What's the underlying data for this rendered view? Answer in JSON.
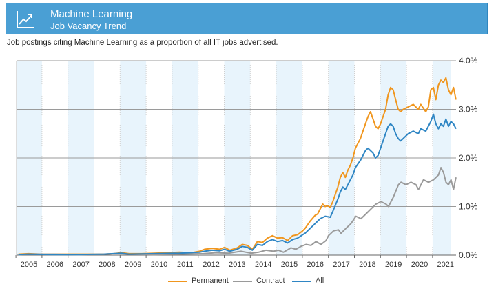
{
  "header": {
    "title": "Machine Learning",
    "subtitle": "Job Vacancy Trend",
    "icon": "trend-chart-icon",
    "color": "#4a9fd4"
  },
  "caption": "Job postings citing Machine Learning as a proportion of all IT jobs advertised.",
  "chart_data": {
    "type": "line",
    "x_axis": {
      "min": 2004.55,
      "max": 2021.4,
      "tick_labels": [
        "2005",
        "2006",
        "2007",
        "2008",
        "2009",
        "2010",
        "2011",
        "2012",
        "2013",
        "2014",
        "2015",
        "2016",
        "2017",
        "2018",
        "2019",
        "2020",
        "2021"
      ]
    },
    "y_axis": {
      "min": 0,
      "max": 4.0,
      "tick_labels": [
        "0.0%",
        "1.0%",
        "2.0%",
        "3.0%",
        "4.0%"
      ],
      "position": "right"
    },
    "grid": true,
    "alternating_year_bands": true,
    "band_color": "#e8f4fc",
    "legend_position": "bottom-center",
    "series": [
      {
        "name": "Permanent",
        "color": "#f0961e",
        "points": [
          [
            2004.6,
            0.02
          ],
          [
            2005.0,
            0.03
          ],
          [
            2005.5,
            0.02
          ],
          [
            2006.0,
            0.02
          ],
          [
            2006.5,
            0.02
          ],
          [
            2007.0,
            0.02
          ],
          [
            2007.5,
            0.02
          ],
          [
            2008.0,
            0.02
          ],
          [
            2008.4,
            0.03
          ],
          [
            2008.7,
            0.05
          ],
          [
            2009.0,
            0.03
          ],
          [
            2009.5,
            0.03
          ],
          [
            2010.0,
            0.04
          ],
          [
            2010.5,
            0.05
          ],
          [
            2011.0,
            0.06
          ],
          [
            2011.5,
            0.05
          ],
          [
            2011.8,
            0.08
          ],
          [
            2012.0,
            0.12
          ],
          [
            2012.3,
            0.14
          ],
          [
            2012.6,
            0.12
          ],
          [
            2012.8,
            0.16
          ],
          [
            2013.0,
            0.1
          ],
          [
            2013.3,
            0.15
          ],
          [
            2013.5,
            0.22
          ],
          [
            2013.7,
            0.2
          ],
          [
            2013.9,
            0.12
          ],
          [
            2014.1,
            0.28
          ],
          [
            2014.3,
            0.26
          ],
          [
            2014.5,
            0.35
          ],
          [
            2014.7,
            0.4
          ],
          [
            2014.9,
            0.35
          ],
          [
            2015.1,
            0.36
          ],
          [
            2015.3,
            0.3
          ],
          [
            2015.5,
            0.4
          ],
          [
            2015.7,
            0.42
          ],
          [
            2015.9,
            0.5
          ],
          [
            2016.0,
            0.55
          ],
          [
            2016.2,
            0.7
          ],
          [
            2016.4,
            0.82
          ],
          [
            2016.5,
            0.85
          ],
          [
            2016.6,
            0.95
          ],
          [
            2016.7,
            1.05
          ],
          [
            2016.8,
            1.0
          ],
          [
            2016.9,
            1.02
          ],
          [
            2017.0,
            0.98
          ],
          [
            2017.1,
            1.1
          ],
          [
            2017.3,
            1.4
          ],
          [
            2017.4,
            1.6
          ],
          [
            2017.5,
            1.7
          ],
          [
            2017.6,
            1.6
          ],
          [
            2017.7,
            1.75
          ],
          [
            2017.8,
            1.85
          ],
          [
            2017.9,
            2.0
          ],
          [
            2018.0,
            2.2
          ],
          [
            2018.2,
            2.4
          ],
          [
            2018.4,
            2.7
          ],
          [
            2018.5,
            2.85
          ],
          [
            2018.6,
            2.95
          ],
          [
            2018.7,
            2.8
          ],
          [
            2018.8,
            2.65
          ],
          [
            2018.9,
            2.6
          ],
          [
            2019.0,
            2.7
          ],
          [
            2019.2,
            3.0
          ],
          [
            2019.3,
            3.3
          ],
          [
            2019.4,
            3.45
          ],
          [
            2019.5,
            3.4
          ],
          [
            2019.6,
            3.2
          ],
          [
            2019.7,
            3.0
          ],
          [
            2019.8,
            2.95
          ],
          [
            2019.9,
            3.0
          ],
          [
            2020.1,
            3.05
          ],
          [
            2020.3,
            3.1
          ],
          [
            2020.5,
            3.0
          ],
          [
            2020.6,
            3.1
          ],
          [
            2020.8,
            2.95
          ],
          [
            2020.9,
            3.05
          ],
          [
            2021.0,
            3.4
          ],
          [
            2021.1,
            3.45
          ],
          [
            2021.2,
            3.2
          ],
          [
            2021.3,
            3.5
          ],
          [
            2021.4,
            3.6
          ],
          [
            2021.5,
            3.55
          ],
          [
            2021.6,
            3.65
          ],
          [
            2021.7,
            3.4
          ],
          [
            2021.8,
            3.3
          ],
          [
            2021.9,
            3.45
          ],
          [
            2022.0,
            3.2
          ]
        ]
      },
      {
        "name": "Contract",
        "color": "#9a9a9a",
        "points": [
          [
            2004.6,
            0.01
          ],
          [
            2005.0,
            0.02
          ],
          [
            2006.0,
            0.02
          ],
          [
            2007.0,
            0.01
          ],
          [
            2008.0,
            0.02
          ],
          [
            2008.4,
            0.03
          ],
          [
            2008.7,
            0.03
          ],
          [
            2009.0,
            0.02
          ],
          [
            2010.0,
            0.01
          ],
          [
            2011.0,
            0.02
          ],
          [
            2012.0,
            0.03
          ],
          [
            2012.5,
            0.05
          ],
          [
            2013.0,
            0.04
          ],
          [
            2013.5,
            0.08
          ],
          [
            2013.9,
            0.04
          ],
          [
            2014.2,
            0.06
          ],
          [
            2014.5,
            0.1
          ],
          [
            2014.8,
            0.08
          ],
          [
            2015.0,
            0.1
          ],
          [
            2015.2,
            0.06
          ],
          [
            2015.5,
            0.15
          ],
          [
            2015.7,
            0.12
          ],
          [
            2015.9,
            0.18
          ],
          [
            2016.1,
            0.22
          ],
          [
            2016.3,
            0.2
          ],
          [
            2016.5,
            0.28
          ],
          [
            2016.7,
            0.22
          ],
          [
            2016.9,
            0.3
          ],
          [
            2017.0,
            0.4
          ],
          [
            2017.2,
            0.5
          ],
          [
            2017.4,
            0.52
          ],
          [
            2017.5,
            0.45
          ],
          [
            2017.7,
            0.55
          ],
          [
            2017.9,
            0.65
          ],
          [
            2018.1,
            0.8
          ],
          [
            2018.3,
            0.75
          ],
          [
            2018.5,
            0.85
          ],
          [
            2018.7,
            0.95
          ],
          [
            2018.9,
            1.05
          ],
          [
            2019.1,
            1.1
          ],
          [
            2019.3,
            1.05
          ],
          [
            2019.4,
            1.0
          ],
          [
            2019.6,
            1.2
          ],
          [
            2019.8,
            1.45
          ],
          [
            2019.9,
            1.5
          ],
          [
            2020.1,
            1.45
          ],
          [
            2020.3,
            1.5
          ],
          [
            2020.5,
            1.45
          ],
          [
            2020.6,
            1.35
          ],
          [
            2020.8,
            1.55
          ],
          [
            2021.0,
            1.5
          ],
          [
            2021.2,
            1.55
          ],
          [
            2021.4,
            1.65
          ],
          [
            2021.5,
            1.8
          ],
          [
            2021.6,
            1.7
          ],
          [
            2021.7,
            1.5
          ],
          [
            2021.8,
            1.45
          ],
          [
            2021.9,
            1.55
          ],
          [
            2022.0,
            1.35
          ],
          [
            2022.1,
            1.6
          ]
        ]
      },
      {
        "name": "All",
        "color": "#2f86c4",
        "points": [
          [
            2004.6,
            0.01
          ],
          [
            2005.0,
            0.02
          ],
          [
            2006.0,
            0.01
          ],
          [
            2007.0,
            0.01
          ],
          [
            2008.0,
            0.02
          ],
          [
            2008.4,
            0.03
          ],
          [
            2008.7,
            0.04
          ],
          [
            2009.0,
            0.02
          ],
          [
            2010.0,
            0.03
          ],
          [
            2011.0,
            0.04
          ],
          [
            2011.8,
            0.06
          ],
          [
            2012.0,
            0.08
          ],
          [
            2012.3,
            0.1
          ],
          [
            2012.6,
            0.09
          ],
          [
            2012.8,
            0.12
          ],
          [
            2013.0,
            0.08
          ],
          [
            2013.3,
            0.12
          ],
          [
            2013.5,
            0.18
          ],
          [
            2013.7,
            0.16
          ],
          [
            2013.9,
            0.1
          ],
          [
            2014.1,
            0.22
          ],
          [
            2014.3,
            0.2
          ],
          [
            2014.5,
            0.28
          ],
          [
            2014.7,
            0.32
          ],
          [
            2014.9,
            0.28
          ],
          [
            2015.1,
            0.3
          ],
          [
            2015.3,
            0.25
          ],
          [
            2015.5,
            0.32
          ],
          [
            2015.7,
            0.35
          ],
          [
            2015.9,
            0.42
          ],
          [
            2016.0,
            0.45
          ],
          [
            2016.2,
            0.55
          ],
          [
            2016.4,
            0.65
          ],
          [
            2016.6,
            0.75
          ],
          [
            2016.8,
            0.8
          ],
          [
            2017.0,
            0.78
          ],
          [
            2017.1,
            0.9
          ],
          [
            2017.3,
            1.15
          ],
          [
            2017.4,
            1.3
          ],
          [
            2017.5,
            1.4
          ],
          [
            2017.6,
            1.35
          ],
          [
            2017.7,
            1.45
          ],
          [
            2017.8,
            1.55
          ],
          [
            2017.9,
            1.65
          ],
          [
            2018.0,
            1.8
          ],
          [
            2018.2,
            1.95
          ],
          [
            2018.4,
            2.15
          ],
          [
            2018.5,
            2.2
          ],
          [
            2018.6,
            2.15
          ],
          [
            2018.7,
            2.1
          ],
          [
            2018.8,
            2.0
          ],
          [
            2018.9,
            2.05
          ],
          [
            2019.0,
            2.2
          ],
          [
            2019.2,
            2.5
          ],
          [
            2019.3,
            2.65
          ],
          [
            2019.4,
            2.7
          ],
          [
            2019.5,
            2.65
          ],
          [
            2019.6,
            2.5
          ],
          [
            2019.7,
            2.4
          ],
          [
            2019.8,
            2.35
          ],
          [
            2019.9,
            2.4
          ],
          [
            2020.1,
            2.5
          ],
          [
            2020.3,
            2.55
          ],
          [
            2020.5,
            2.5
          ],
          [
            2020.6,
            2.6
          ],
          [
            2020.8,
            2.55
          ],
          [
            2021.0,
            2.75
          ],
          [
            2021.1,
            2.9
          ],
          [
            2021.2,
            2.7
          ],
          [
            2021.3,
            2.6
          ],
          [
            2021.4,
            2.7
          ],
          [
            2021.5,
            2.65
          ],
          [
            2021.6,
            2.8
          ],
          [
            2021.7,
            2.65
          ],
          [
            2021.8,
            2.75
          ],
          [
            2021.9,
            2.7
          ],
          [
            2022.0,
            2.6
          ]
        ]
      }
    ]
  },
  "legend": [
    {
      "name": "Permanent",
      "color": "#f0961e"
    },
    {
      "name": "Contract",
      "color": "#9a9a9a"
    },
    {
      "name": "All",
      "color": "#2f86c4"
    }
  ]
}
